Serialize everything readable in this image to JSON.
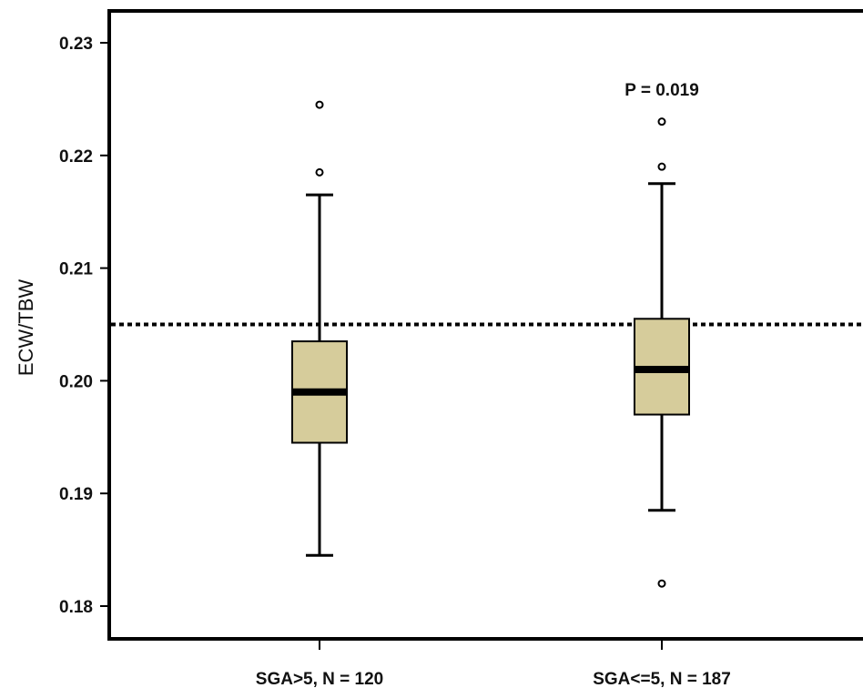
{
  "chart_data": {
    "type": "box",
    "ylabel": "ECW/TBW",
    "ylim": [
      0.178,
      0.2325
    ],
    "yticks": [
      0.18,
      0.19,
      0.2,
      0.21,
      0.22,
      0.23
    ],
    "ytick_labels": [
      "0.18",
      "0.19",
      "0.20",
      "0.21",
      "0.22",
      "0.23"
    ],
    "categories": [
      "SGA>5, N = 120",
      "SGA<=5, N = 187"
    ],
    "boxes": [
      {
        "whisker_low": 0.1845,
        "q1": 0.1945,
        "median": 0.199,
        "q3": 0.2035,
        "whisker_high": 0.2165,
        "outliers": [
          0.2185,
          0.2245
        ]
      },
      {
        "whisker_low": 0.1885,
        "q1": 0.197,
        "median": 0.201,
        "q3": 0.2055,
        "whisker_high": 0.2175,
        "outliers": [
          0.182,
          0.219,
          0.223
        ]
      }
    ],
    "reference_line": {
      "y": 0.205,
      "style": "dotted"
    },
    "annotation": "P = 0.019",
    "box_color": "#d6cc9b",
    "grid": false,
    "legend": "none"
  }
}
